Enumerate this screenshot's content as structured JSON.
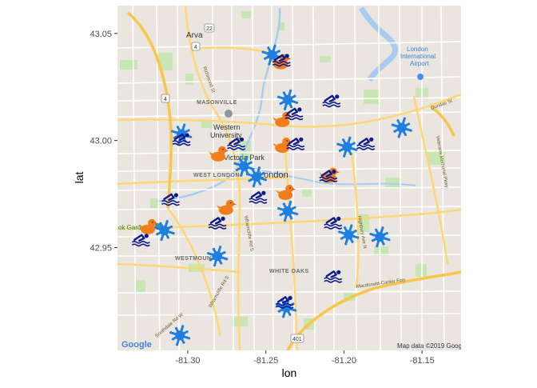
{
  "chart_data": {
    "type": "scatter",
    "title": "",
    "xlabel": "lon",
    "ylabel": "lat",
    "xlim": [
      -81.345,
      -81.125
    ],
    "ylim": [
      42.902,
      43.063
    ],
    "x_ticks": [
      -81.3,
      -81.25,
      -81.2,
      -81.15
    ],
    "x_tick_labels": [
      "-81.30",
      "-81.25",
      "-81.20",
      "-81.15"
    ],
    "y_ticks": [
      42.95,
      43.0,
      43.05
    ],
    "y_tick_labels": [
      "42.95",
      "43.00",
      "43.05"
    ],
    "grid": false,
    "legend": "none",
    "background": "google-roadmap",
    "series": [
      {
        "marker": "splash-icon",
        "color": "#1e7fe0",
        "points": [
          {
            "x": -81.246,
            "y": 43.04
          },
          {
            "x": -81.236,
            "y": 43.019
          },
          {
            "x": -81.304,
            "y": 43.003
          },
          {
            "x": -81.264,
            "y": 42.988
          },
          {
            "x": -81.256,
            "y": 42.983
          },
          {
            "x": -81.198,
            "y": 42.997
          },
          {
            "x": -81.163,
            "y": 43.006
          },
          {
            "x": -81.315,
            "y": 42.958
          },
          {
            "x": -81.236,
            "y": 42.967
          },
          {
            "x": -81.197,
            "y": 42.956
          },
          {
            "x": -81.177,
            "y": 42.955
          },
          {
            "x": -81.281,
            "y": 42.946
          },
          {
            "x": -81.237,
            "y": 42.922
          },
          {
            "x": -81.305,
            "y": 42.909
          }
        ]
      },
      {
        "marker": "rubber-duck-icon",
        "color": "#f27d1b",
        "points": [
          {
            "x": -81.24,
            "y": 43.037
          },
          {
            "x": -81.239,
            "y": 43.01
          },
          {
            "x": -81.239,
            "y": 42.998
          },
          {
            "x": -81.28,
            "y": 42.994
          },
          {
            "x": -81.209,
            "y": 42.984
          },
          {
            "x": -81.237,
            "y": 42.976
          },
          {
            "x": -81.275,
            "y": 42.969
          },
          {
            "x": -81.325,
            "y": 42.96
          }
        ]
      },
      {
        "marker": "swimmer-icon",
        "color": "#0d1a8a",
        "points": [
          {
            "x": -81.24,
            "y": 43.038
          },
          {
            "x": -81.208,
            "y": 43.019
          },
          {
            "x": -81.232,
            "y": 43.013
          },
          {
            "x": -81.304,
            "y": 43.001
          },
          {
            "x": -81.269,
            "y": 42.999
          },
          {
            "x": -81.231,
            "y": 42.999
          },
          {
            "x": -81.186,
            "y": 42.999
          },
          {
            "x": -81.21,
            "y": 42.984
          },
          {
            "x": -81.311,
            "y": 42.973
          },
          {
            "x": -81.255,
            "y": 42.974
          },
          {
            "x": -81.281,
            "y": 42.962
          },
          {
            "x": -81.207,
            "y": 42.962
          },
          {
            "x": -81.33,
            "y": 42.954
          },
          {
            "x": -81.207,
            "y": 42.937
          },
          {
            "x": -81.238,
            "y": 42.925
          }
        ]
      }
    ],
    "map_labels": [
      "Arva",
      "MASONVILLE",
      "Western",
      "University",
      "Victoria Park",
      "London",
      "WEST LONDON",
      "WESTMOUNT",
      "WHITE OAKS",
      "London International Airport",
      "ok Gardens",
      "Dundas St",
      "Richmond St",
      "Wharncliffe Rd S",
      "Highbury Ave N",
      "Veterans Memorial Pkwy",
      "Macdonald-Cartier Fwy",
      "Southdale Rd W",
      "401",
      "4",
      "22",
      "Map data ©2019 Google",
      "Google"
    ]
  }
}
